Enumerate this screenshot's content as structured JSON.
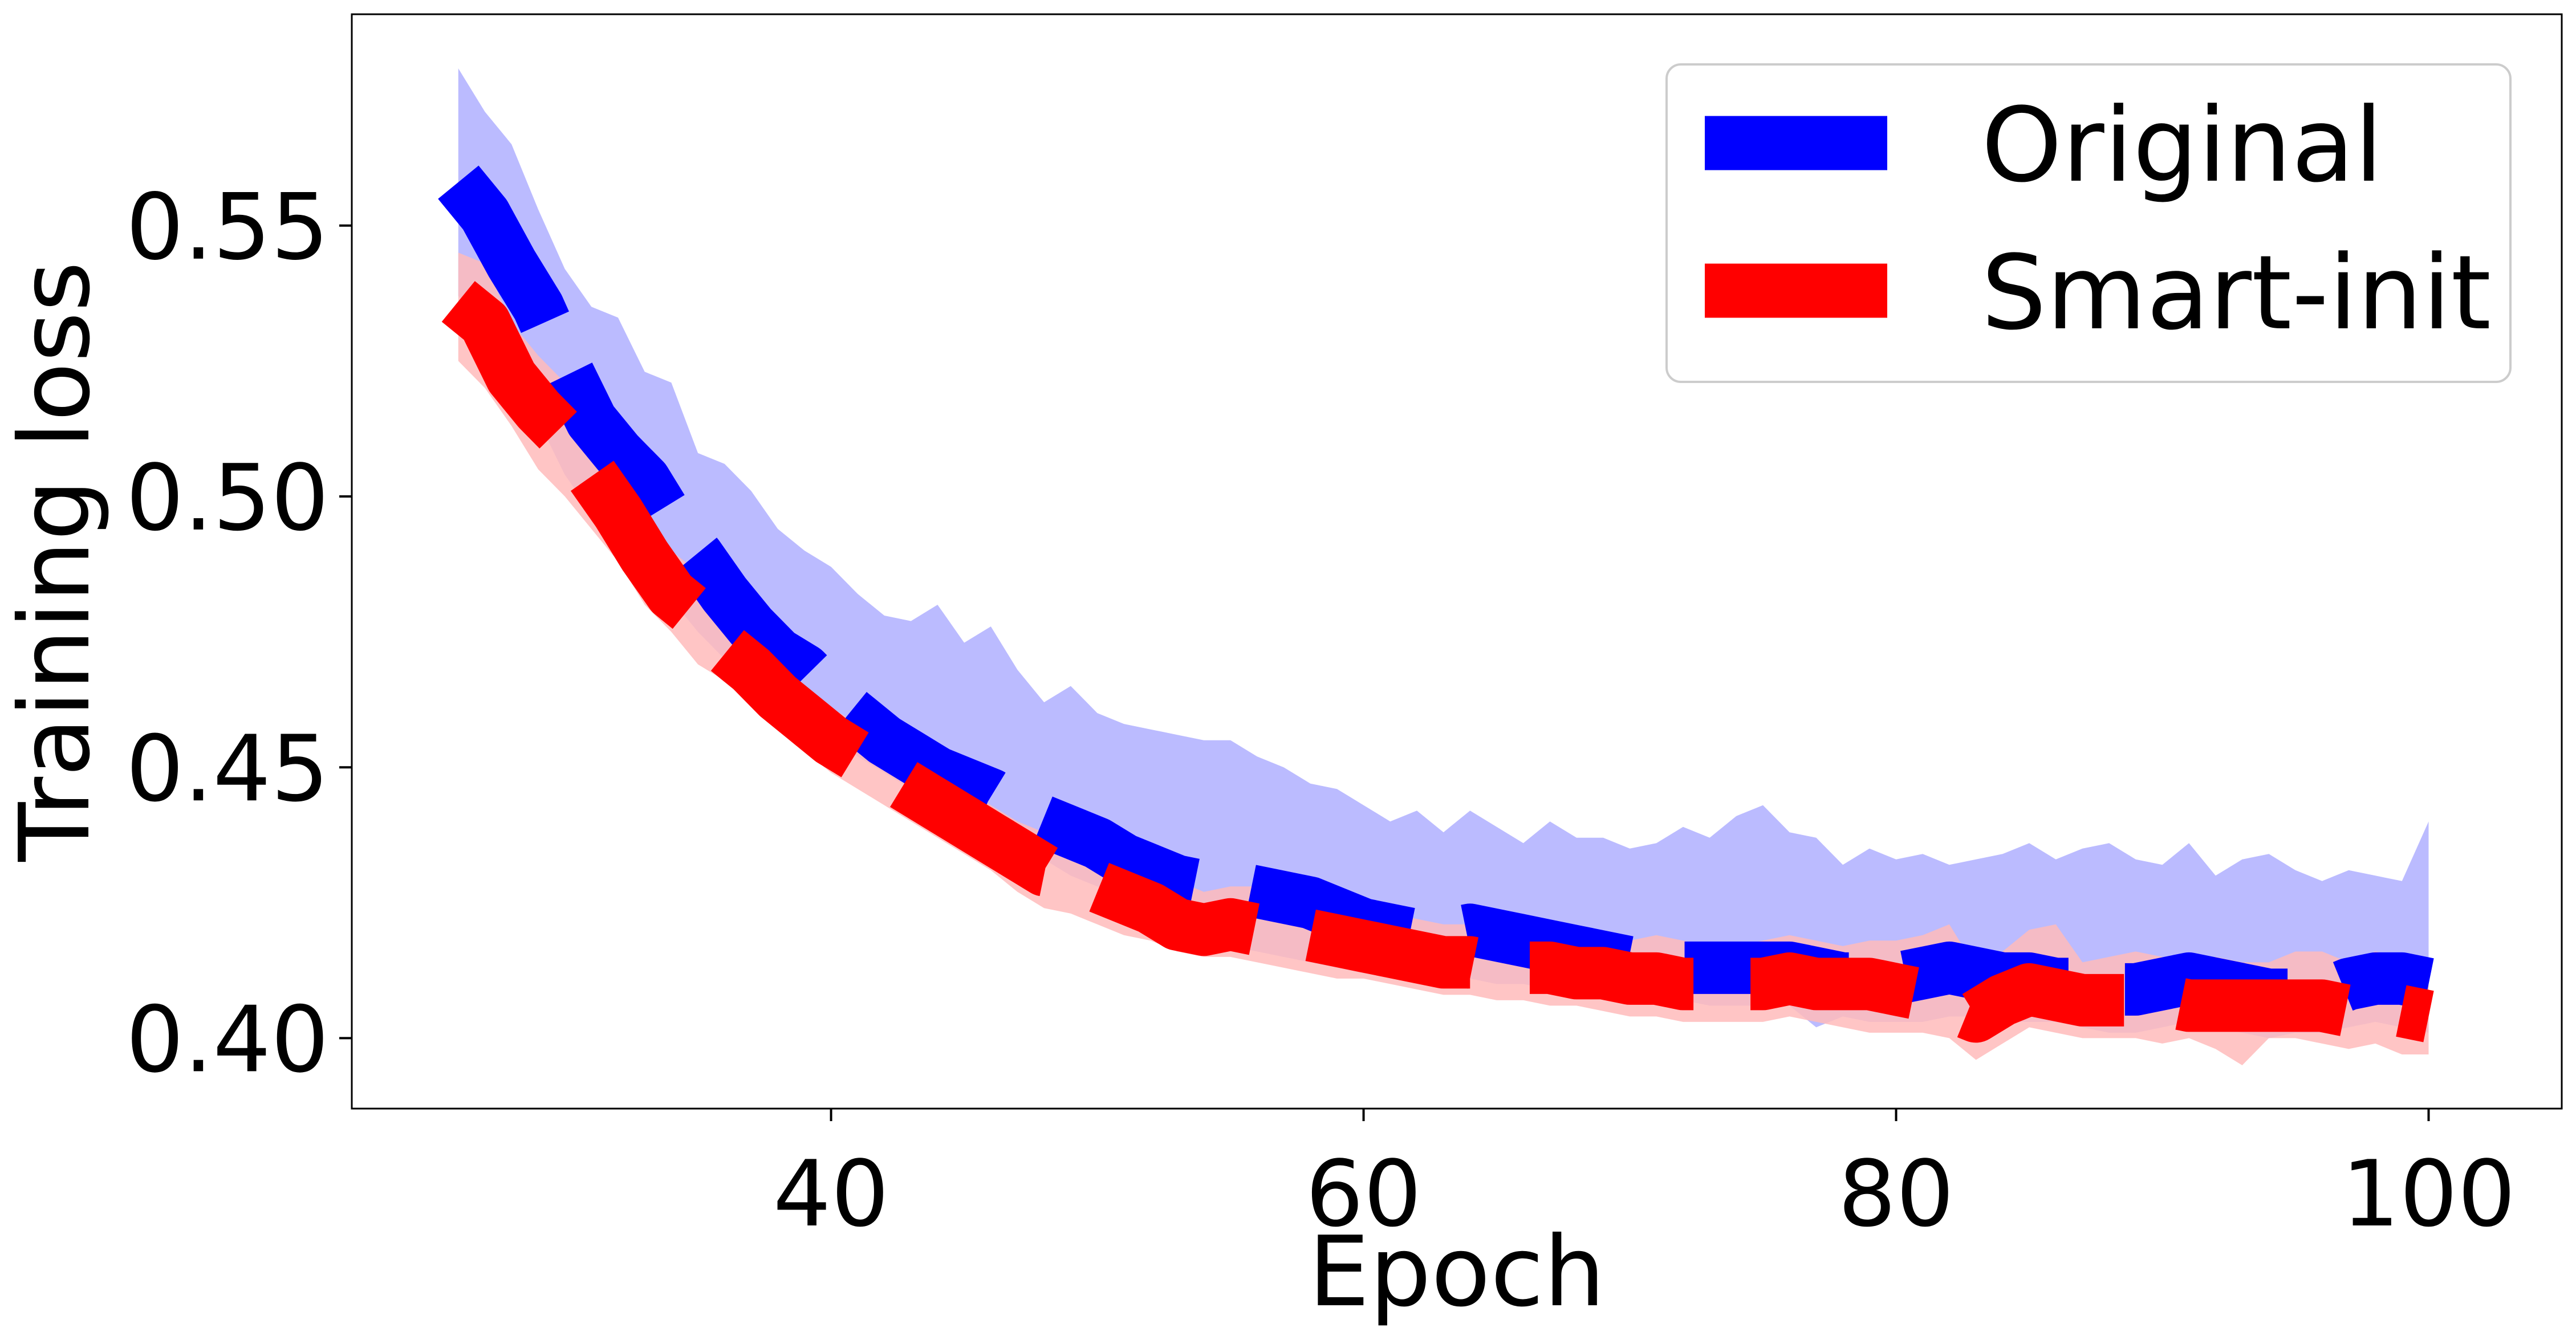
{
  "chart_data": {
    "type": "line",
    "title": "",
    "xlabel": "Epoch",
    "ylabel": "Training loss",
    "xlim": [
      22,
      105
    ],
    "ylim": [
      0.387,
      0.589
    ],
    "xticks": [
      40,
      60,
      80,
      100
    ],
    "yticks": [
      0.4,
      0.45,
      0.5,
      0.55
    ],
    "x_tick_labels": [
      "40",
      "60",
      "80",
      "100"
    ],
    "y_tick_labels": [
      "0.40",
      "0.45",
      "0.50",
      "0.55"
    ],
    "grid": false,
    "legend_position": "top-right",
    "line_style": "dashed",
    "x": [
      26,
      27,
      28,
      29,
      30,
      31,
      32,
      33,
      34,
      35,
      36,
      37,
      38,
      39,
      40,
      41,
      42,
      43,
      44,
      45,
      46,
      47,
      48,
      49,
      50,
      51,
      52,
      53,
      54,
      55,
      56,
      57,
      58,
      59,
      60,
      61,
      62,
      63,
      64,
      65,
      66,
      67,
      68,
      69,
      70,
      71,
      72,
      73,
      74,
      75,
      76,
      77,
      78,
      79,
      80,
      81,
      82,
      83,
      84,
      85,
      86,
      87,
      88,
      89,
      90,
      91,
      92,
      93,
      94,
      95,
      96,
      97,
      98,
      99,
      100
    ],
    "series": [
      {
        "name": "Original",
        "color": "#0000ff",
        "band_color": "#bbbbff",
        "values": [
          0.558,
          0.552,
          0.543,
          0.535,
          0.524,
          0.514,
          0.508,
          0.503,
          0.495,
          0.489,
          0.482,
          0.476,
          0.471,
          0.468,
          0.463,
          0.459,
          0.455,
          0.452,
          0.449,
          0.447,
          0.445,
          0.442,
          0.44,
          0.438,
          0.436,
          0.433,
          0.431,
          0.429,
          0.428,
          0.428,
          0.427,
          0.426,
          0.425,
          0.423,
          0.421,
          0.42,
          0.419,
          0.419,
          0.42,
          0.419,
          0.418,
          0.417,
          0.416,
          0.415,
          0.414,
          0.414,
          0.413,
          0.413,
          0.413,
          0.413,
          0.413,
          0.412,
          0.411,
          0.411,
          0.411,
          0.412,
          0.413,
          0.412,
          0.411,
          0.411,
          0.41,
          0.41,
          0.409,
          0.409,
          0.41,
          0.411,
          0.41,
          0.409,
          0.408,
          0.408,
          0.408,
          0.41,
          0.411,
          0.411,
          0.41
        ],
        "lower": [
          0.537,
          0.532,
          0.522,
          0.514,
          0.504,
          0.497,
          0.492,
          0.487,
          0.481,
          0.475,
          0.47,
          0.465,
          0.461,
          0.458,
          0.455,
          0.452,
          0.449,
          0.446,
          0.443,
          0.441,
          0.439,
          0.436,
          0.433,
          0.43,
          0.428,
          0.425,
          0.422,
          0.419,
          0.418,
          0.417,
          0.416,
          0.415,
          0.414,
          0.413,
          0.412,
          0.412,
          0.411,
          0.411,
          0.411,
          0.41,
          0.41,
          0.409,
          0.409,
          0.408,
          0.408,
          0.407,
          0.407,
          0.406,
          0.406,
          0.406,
          0.406,
          0.402,
          0.404,
          0.403,
          0.403,
          0.403,
          0.404,
          0.404,
          0.403,
          0.403,
          0.403,
          0.402,
          0.401,
          0.401,
          0.402,
          0.403,
          0.402,
          0.401,
          0.4,
          0.401,
          0.401,
          0.402,
          0.403,
          0.402,
          0.401
        ],
        "upper": [
          0.579,
          0.571,
          0.565,
          0.553,
          0.542,
          0.535,
          0.533,
          0.523,
          0.521,
          0.508,
          0.506,
          0.501,
          0.494,
          0.49,
          0.487,
          0.482,
          0.478,
          0.477,
          0.48,
          0.473,
          0.476,
          0.468,
          0.462,
          0.465,
          0.46,
          0.458,
          0.457,
          0.456,
          0.455,
          0.455,
          0.452,
          0.45,
          0.447,
          0.446,
          0.443,
          0.44,
          0.442,
          0.438,
          0.442,
          0.439,
          0.436,
          0.44,
          0.437,
          0.437,
          0.435,
          0.436,
          0.439,
          0.437,
          0.441,
          0.443,
          0.438,
          0.437,
          0.432,
          0.435,
          0.433,
          0.434,
          0.432,
          0.433,
          0.434,
          0.436,
          0.433,
          0.435,
          0.436,
          0.433,
          0.432,
          0.436,
          0.43,
          0.433,
          0.434,
          0.431,
          0.429,
          0.431,
          0.43,
          0.429,
          0.44
        ]
      },
      {
        "name": "Smart-init",
        "color": "#ff0000",
        "band_color": "#ffbbbb",
        "values": [
          0.536,
          0.532,
          0.522,
          0.516,
          0.511,
          0.504,
          0.497,
          0.489,
          0.482,
          0.478,
          0.472,
          0.468,
          0.463,
          0.459,
          0.455,
          0.452,
          0.449,
          0.446,
          0.443,
          0.44,
          0.437,
          0.434,
          0.431,
          0.43,
          0.428,
          0.426,
          0.424,
          0.421,
          0.42,
          0.421,
          0.42,
          0.42,
          0.419,
          0.418,
          0.417,
          0.416,
          0.415,
          0.414,
          0.414,
          0.413,
          0.413,
          0.413,
          0.412,
          0.412,
          0.411,
          0.411,
          0.41,
          0.41,
          0.41,
          0.41,
          0.411,
          0.41,
          0.41,
          0.41,
          0.409,
          0.408,
          0.406,
          0.404,
          0.407,
          0.409,
          0.408,
          0.407,
          0.407,
          0.407,
          0.407,
          0.406,
          0.406,
          0.406,
          0.406,
          0.406,
          0.406,
          0.405,
          0.406,
          0.405,
          0.404
        ],
        "lower": [
          0.525,
          0.52,
          0.513,
          0.505,
          0.5,
          0.494,
          0.488,
          0.48,
          0.475,
          0.469,
          0.466,
          0.462,
          0.457,
          0.453,
          0.449,
          0.446,
          0.443,
          0.44,
          0.437,
          0.434,
          0.431,
          0.427,
          0.424,
          0.423,
          0.421,
          0.419,
          0.418,
          0.416,
          0.415,
          0.415,
          0.414,
          0.413,
          0.412,
          0.411,
          0.411,
          0.41,
          0.409,
          0.408,
          0.408,
          0.407,
          0.407,
          0.406,
          0.406,
          0.405,
          0.404,
          0.404,
          0.403,
          0.403,
          0.403,
          0.403,
          0.404,
          0.403,
          0.402,
          0.401,
          0.401,
          0.401,
          0.4,
          0.396,
          0.399,
          0.402,
          0.401,
          0.4,
          0.4,
          0.4,
          0.399,
          0.4,
          0.398,
          0.395,
          0.4,
          0.4,
          0.399,
          0.398,
          0.399,
          0.397,
          0.397
        ],
        "upper": [
          0.545,
          0.543,
          0.532,
          0.526,
          0.521,
          0.514,
          0.506,
          0.497,
          0.49,
          0.486,
          0.479,
          0.475,
          0.469,
          0.465,
          0.461,
          0.458,
          0.455,
          0.452,
          0.449,
          0.446,
          0.443,
          0.44,
          0.438,
          0.437,
          0.435,
          0.434,
          0.432,
          0.429,
          0.427,
          0.428,
          0.428,
          0.427,
          0.426,
          0.425,
          0.424,
          0.423,
          0.422,
          0.421,
          0.421,
          0.42,
          0.42,
          0.419,
          0.418,
          0.418,
          0.418,
          0.419,
          0.418,
          0.417,
          0.417,
          0.418,
          0.419,
          0.418,
          0.417,
          0.418,
          0.418,
          0.419,
          0.421,
          0.413,
          0.416,
          0.42,
          0.421,
          0.414,
          0.415,
          0.416,
          0.415,
          0.414,
          0.415,
          0.414,
          0.414,
          0.416,
          0.416,
          0.414,
          0.416,
          0.415,
          0.412
        ]
      }
    ]
  }
}
